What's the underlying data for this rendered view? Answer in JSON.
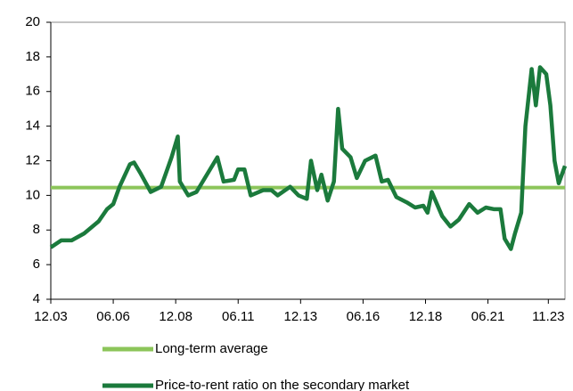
{
  "chart_data": {
    "type": "line",
    "ylim": [
      4,
      20
    ],
    "yticks": [
      4,
      6,
      8,
      10,
      12,
      14,
      16,
      18,
      20
    ],
    "xlim": [
      "12.03",
      "07.24"
    ],
    "xticks": [
      "12.03",
      "06.06",
      "12.08",
      "06.11",
      "12.13",
      "06.16",
      "12.18",
      "06.21",
      "11.23"
    ],
    "series": [
      {
        "name": "Long-term average",
        "color": "#8cc55a",
        "x": [
          "12.03",
          "07.24"
        ],
        "values": [
          10.45,
          10.45
        ]
      },
      {
        "name": "Price-to-rent ratio on the secondary market",
        "color": "#1b7a3c",
        "x": [
          "12.03",
          "05.04",
          "10.04",
          "04.05",
          "11.05",
          "03.06",
          "06.06",
          "09.06",
          "02.07",
          "04.07",
          "07.07",
          "12.07",
          "05.08",
          "10.08",
          "01.09",
          "02.09",
          "06.09",
          "10.09",
          "02.10",
          "08.10",
          "11.10",
          "04.11",
          "06.11",
          "09.11",
          "12.11",
          "06.12",
          "10.12",
          "01.13",
          "07.13",
          "11.13",
          "03.14",
          "05.14",
          "08.14",
          "10.14",
          "01.15",
          "04.15",
          "06.15",
          "08.15",
          "12.15",
          "03.16",
          "07.16",
          "12.16",
          "03.17",
          "06.17",
          "10.17",
          "03.18",
          "07.18",
          "11.18",
          "01.19",
          "03.19",
          "08.19",
          "12.19",
          "04.20",
          "09.20",
          "01.21",
          "05.21",
          "09.21",
          "12.21",
          "02.22",
          "05.22",
          "07.22",
          "10.22",
          "12.22",
          "03.23",
          "05.23",
          "07.23",
          "10.23",
          "12.23",
          "02.24",
          "04.24",
          "07.24"
        ],
        "values": [
          7.0,
          7.4,
          7.4,
          7.8,
          8.5,
          9.2,
          9.5,
          10.5,
          11.8,
          11.9,
          11.3,
          10.2,
          10.5,
          12.2,
          13.4,
          10.8,
          10.0,
          10.2,
          11.0,
          12.2,
          10.8,
          10.9,
          11.5,
          11.5,
          10.0,
          10.3,
          10.3,
          10.0,
          10.5,
          10.0,
          9.8,
          12.0,
          10.3,
          11.2,
          9.7,
          10.8,
          15.0,
          12.7,
          12.2,
          11.0,
          12.0,
          12.3,
          10.8,
          10.9,
          9.9,
          9.6,
          9.3,
          9.4,
          9.0,
          10.2,
          8.8,
          8.2,
          8.6,
          9.5,
          9.0,
          9.3,
          9.2,
          9.2,
          7.5,
          6.9,
          7.8,
          9.0,
          14.0,
          17.3,
          15.2,
          17.4,
          17.0,
          15.2,
          12.0,
          10.7,
          11.7
        ]
      }
    ]
  }
}
